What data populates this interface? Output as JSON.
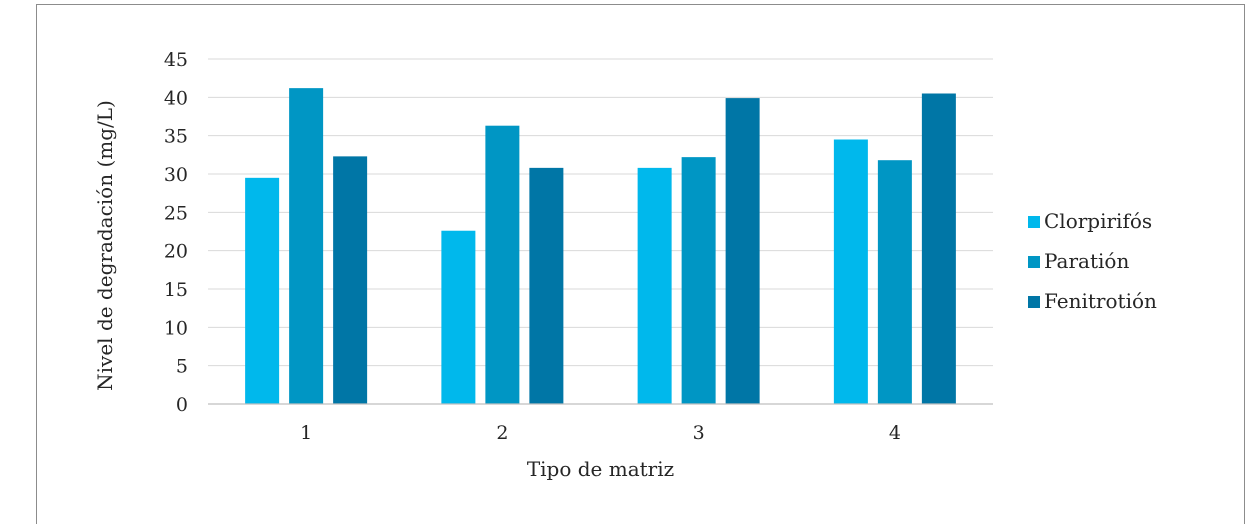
{
  "chart_data": {
    "type": "bar",
    "title": "",
    "xlabel": "Tipo de matriz",
    "ylabel": "Nivel de degradación (mg/L)",
    "categories": [
      "1",
      "2",
      "3",
      "4"
    ],
    "ylim": [
      0,
      45
    ],
    "yticks": [
      "0",
      "5",
      "10",
      "15",
      "20",
      "25",
      "30",
      "35",
      "40",
      "45"
    ],
    "grid": true,
    "legend_position": "right",
    "series": [
      {
        "name": "Clorpirifós",
        "color": "#00b8ec",
        "values": [
          29.5,
          22.6,
          30.8,
          34.5
        ]
      },
      {
        "name": "Paratión",
        "color": "#0096c4",
        "values": [
          41.2,
          36.3,
          32.2,
          31.8
        ]
      },
      {
        "name": "Fenitrotión",
        "color": "#0076a6",
        "values": [
          32.3,
          30.8,
          39.9,
          40.5
        ]
      }
    ]
  }
}
